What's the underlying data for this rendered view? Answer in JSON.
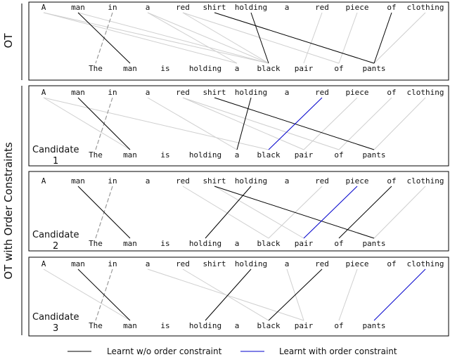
{
  "side_labels": {
    "top": "OT",
    "bottom": "OT with Order Constraints"
  },
  "source_words": [
    "A",
    "man",
    "in",
    "a",
    "red",
    "shirt",
    "holding",
    "a",
    "red",
    "piece",
    "of",
    "clothing"
  ],
  "target_words": [
    "The",
    "man",
    "is",
    "holding",
    "a",
    "black",
    "pair",
    "of",
    "pants"
  ],
  "panels": [
    {
      "id": "ot",
      "candidate_label": "",
      "candidate_number": "",
      "learnt": [
        [
          1,
          1
        ],
        [
          5,
          8
        ],
        [
          6,
          5
        ],
        [
          10,
          8
        ]
      ],
      "learnt_order": [],
      "faint": [
        [
          0,
          4
        ],
        [
          0,
          5
        ],
        [
          1,
          5
        ],
        [
          3,
          5
        ],
        [
          3,
          4
        ],
        [
          4,
          5
        ],
        [
          4,
          7
        ],
        [
          8,
          6
        ],
        [
          9,
          7
        ],
        [
          11,
          8
        ]
      ],
      "dashed": [
        [
          2,
          0
        ]
      ]
    },
    {
      "id": "candidate-1",
      "candidate_label": "Candidate",
      "candidate_number": "1",
      "learnt": [
        [
          1,
          1
        ],
        [
          5,
          8
        ],
        [
          6,
          4
        ]
      ],
      "learnt_order": [
        [
          8,
          5
        ]
      ],
      "faint": [
        [
          0,
          1
        ],
        [
          0,
          5
        ],
        [
          3,
          4
        ],
        [
          4,
          6
        ],
        [
          4,
          7
        ],
        [
          9,
          6
        ],
        [
          10,
          7
        ],
        [
          11,
          8
        ]
      ],
      "dashed": [
        [
          2,
          0
        ]
      ]
    },
    {
      "id": "candidate-2",
      "candidate_label": "Candidate",
      "candidate_number": "2",
      "learnt": [
        [
          1,
          1
        ],
        [
          5,
          8
        ],
        [
          6,
          3
        ],
        [
          10,
          7
        ]
      ],
      "learnt_order": [
        [
          9,
          6
        ]
      ],
      "faint": [
        [
          4,
          5
        ],
        [
          5,
          6
        ],
        [
          8,
          5
        ],
        [
          11,
          8
        ]
      ],
      "dashed": [
        [
          2,
          0
        ]
      ]
    },
    {
      "id": "candidate-3",
      "candidate_label": "Candidate",
      "candidate_number": "3",
      "learnt": [
        [
          1,
          1
        ],
        [
          6,
          3
        ],
        [
          8,
          5
        ]
      ],
      "learnt_order": [
        [
          11,
          8
        ]
      ],
      "faint": [
        [
          0,
          1
        ],
        [
          3,
          6
        ],
        [
          4,
          5
        ],
        [
          7,
          6
        ],
        [
          9,
          7
        ]
      ],
      "dashed": [
        [
          2,
          0
        ]
      ]
    }
  ],
  "legend": {
    "without_order": "Learnt w/o order constraint",
    "with_order": "Learnt with order constraint",
    "without_color": "#000000",
    "with_color": "#0000cc"
  },
  "colors": {
    "faint": "#cfcfcf",
    "dashed": "#9a9a9a"
  }
}
